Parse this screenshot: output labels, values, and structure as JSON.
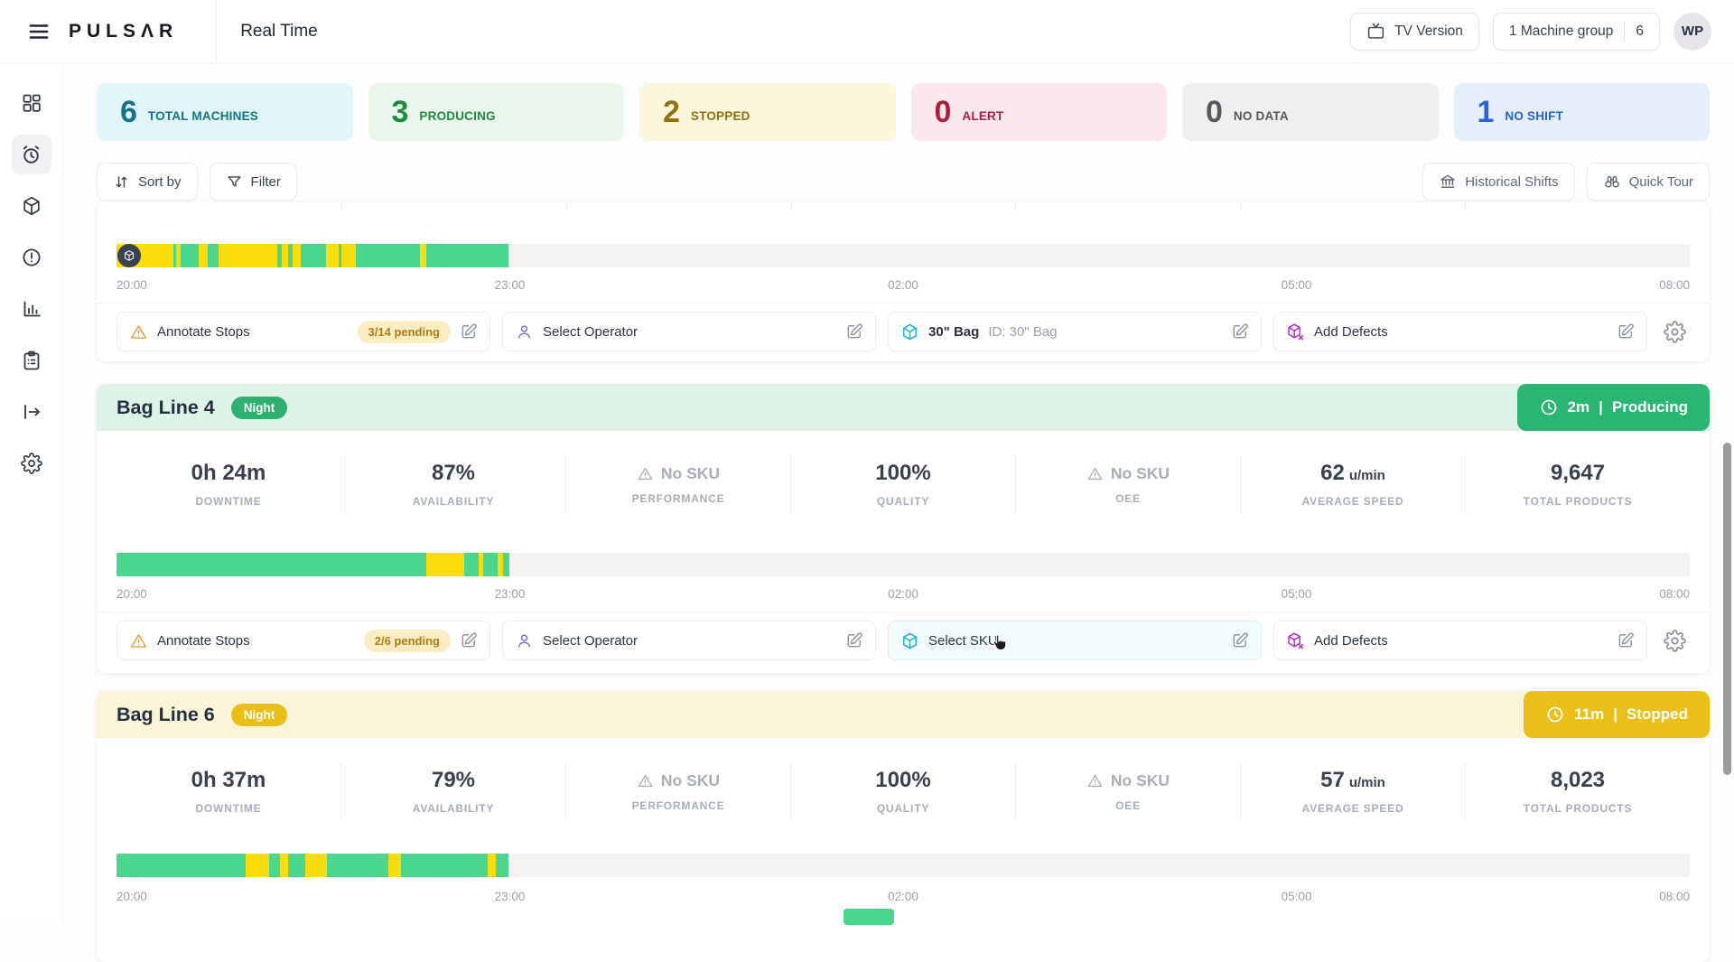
{
  "topbar": {
    "brand": "PULSΛR",
    "title": "Real Time",
    "tv_version": "TV Version",
    "machine_group_label": "1 Machine group",
    "machine_group_count": "6",
    "avatar_initials": "WP"
  },
  "sidebar": {
    "items": [
      "dashboard",
      "real-time",
      "products",
      "alerts",
      "analytics",
      "reports",
      "export",
      "settings"
    ],
    "active": "real-time"
  },
  "summary": {
    "cards": [
      {
        "value": "6",
        "label": "TOTAL MACHINES",
        "bg": "#E1F6F8",
        "fg": "#157487"
      },
      {
        "value": "3",
        "label": "PRODUCING",
        "bg": "#E9F7EC",
        "fg": "#1F8A44"
      },
      {
        "value": "2",
        "label": "STOPPED",
        "bg": "#FCF6DC",
        "fg": "#93700E"
      },
      {
        "value": "0",
        "label": "ALERT",
        "bg": "#FAE8EC",
        "fg": "#B01E3C"
      },
      {
        "value": "0",
        "label": "NO DATA",
        "bg": "#EFEFEF",
        "fg": "#55585E"
      },
      {
        "value": "1",
        "label": "NO SHIFT",
        "bg": "#E6EEFB",
        "fg": "#2A62D9"
      }
    ]
  },
  "toolbar": {
    "sort": "Sort by",
    "filter": "Filter",
    "historical": "Historical Shifts",
    "quick_tour": "Quick Tour"
  },
  "axis": [
    "20:00",
    "23:00",
    "02:00",
    "05:00",
    "08:00"
  ],
  "colors": {
    "g": "#4AD68F",
    "y": "#FBDC0C",
    "track": "#F5F3F1"
  },
  "status_separator": "|",
  "machines": [
    {
      "timeline": [
        [
          "y",
          3.6
        ],
        [
          "g",
          0.2
        ],
        [
          "y",
          0.3
        ],
        [
          "g",
          1.1
        ],
        [
          "y",
          0.6
        ],
        [
          "g",
          0.7
        ],
        [
          "y",
          3.7
        ],
        [
          "g",
          0.3
        ],
        [
          "y",
          0.4
        ],
        [
          "g",
          0.3
        ],
        [
          "y",
          0.5
        ],
        [
          "g",
          1.6
        ],
        [
          "y",
          0.8
        ],
        [
          "g",
          0.2
        ],
        [
          "y",
          0.9
        ],
        [
          "g",
          4.1
        ],
        [
          "y",
          0.4
        ],
        [
          "g",
          5.2
        ]
      ],
      "actions": {
        "annotate": "Annotate Stops",
        "pending": "3/14 pending",
        "operator": "Select Operator",
        "sku": "30\" Bag",
        "sku_id": "ID: 30\" Bag",
        "defects": "Add Defects"
      }
    },
    {
      "name": "Bag Line 4",
      "shift": "Night",
      "status_time": "2m",
      "status_state": "Producing",
      "stats": [
        {
          "value": "0h 24m",
          "label": "DOWNTIME"
        },
        {
          "value": "87%",
          "label": "AVAILABILITY"
        },
        {
          "value": "No SKU",
          "label": "PERFORMANCE"
        },
        {
          "value": "100%",
          "label": "QUALITY"
        },
        {
          "value": "No SKU",
          "label": "OEE"
        },
        {
          "value": "62",
          "unit": "u/min",
          "label": "AVERAGE SPEED"
        },
        {
          "value": "9,647",
          "label": "TOTAL PRODUCTS"
        }
      ],
      "timeline": [
        [
          "g",
          19.7
        ],
        [
          "y",
          2.4
        ],
        [
          "g",
          0.9
        ],
        [
          "y",
          0.3
        ],
        [
          "g",
          0.9
        ],
        [
          "y",
          0.35
        ],
        [
          "g",
          0.4
        ]
      ],
      "actions": {
        "annotate": "Annotate Stops",
        "pending": "2/6 pending",
        "operator": "Select Operator",
        "sku": "Select SKU",
        "defects": "Add Defects"
      }
    },
    {
      "name": "Bag Line 6",
      "shift": "Night",
      "status_time": "11m",
      "status_state": "Stopped",
      "stats": [
        {
          "value": "0h 37m",
          "label": "DOWNTIME"
        },
        {
          "value": "79%",
          "label": "AVAILABILITY"
        },
        {
          "value": "No SKU",
          "label": "PERFORMANCE"
        },
        {
          "value": "100%",
          "label": "QUALITY"
        },
        {
          "value": "No SKU",
          "label": "OEE"
        },
        {
          "value": "57",
          "unit": "u/min",
          "label": "AVERAGE SPEED"
        },
        {
          "value": "8,023",
          "label": "TOTAL PRODUCTS"
        }
      ],
      "timeline": [
        [
          "g",
          8.2
        ],
        [
          "y",
          1.5
        ],
        [
          "g",
          0.7
        ],
        [
          "y",
          0.5
        ],
        [
          "g",
          1.1
        ],
        [
          "y",
          1.4
        ],
        [
          "g",
          3.9
        ],
        [
          "y",
          0.8
        ],
        [
          "g",
          5.5
        ],
        [
          "y",
          0.5
        ],
        [
          "g",
          0.8
        ]
      ]
    }
  ]
}
